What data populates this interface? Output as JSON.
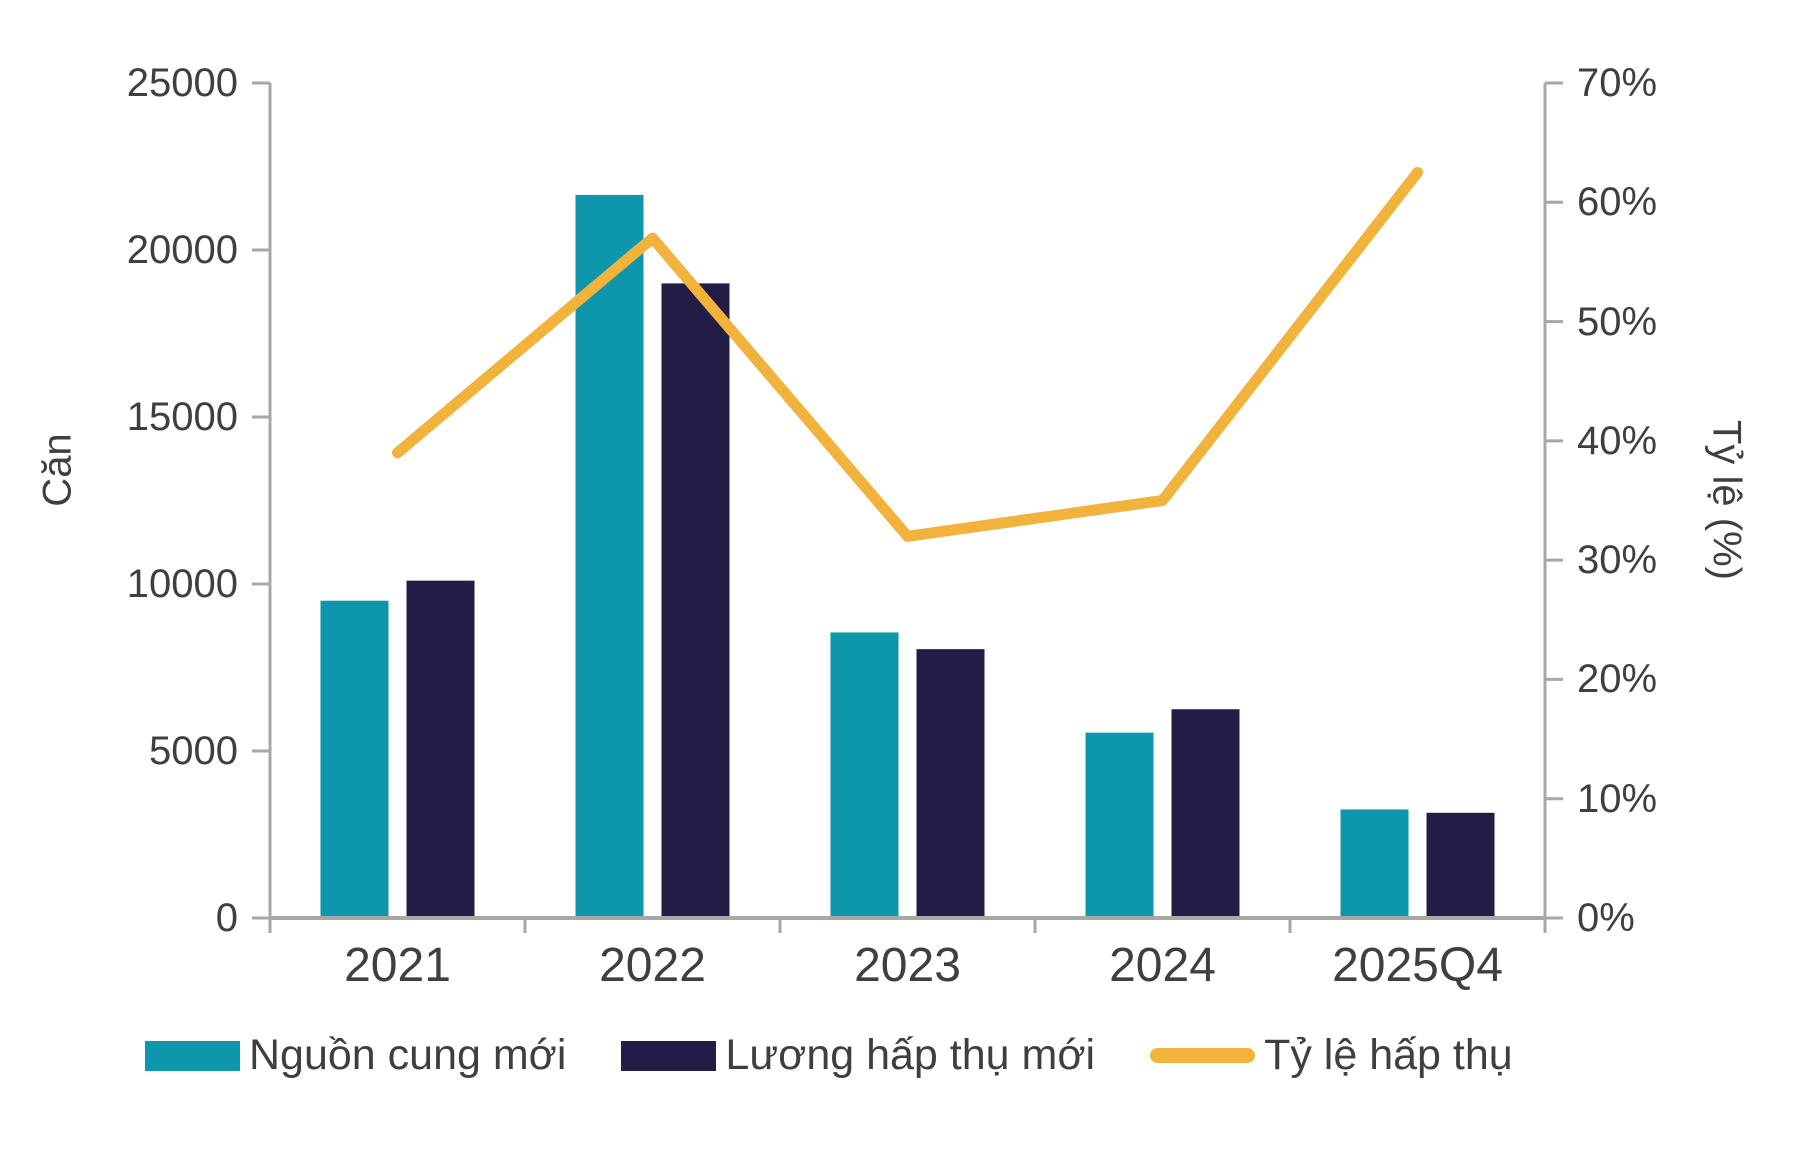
{
  "chart_data": {
    "type": "bar",
    "subtype": "combo-bar-line",
    "categories": [
      "2021",
      "2022",
      "2023",
      "2024",
      "2025Q4"
    ],
    "series": [
      {
        "name": "Nguồn cung mới",
        "type": "bar",
        "axis": "left",
        "color": "#0E96AD",
        "values": [
          9500,
          21650,
          8550,
          5550,
          3250
        ]
      },
      {
        "name": "Lương hấp thụ mới",
        "type": "bar",
        "axis": "left",
        "color": "#221C46",
        "values": [
          10100,
          19000,
          8050,
          6250,
          3150
        ]
      },
      {
        "name": "Tỷ lệ hấp thụ",
        "type": "line",
        "axis": "right",
        "color": "#F2B33D",
        "values": [
          39,
          57,
          32,
          35,
          62.5
        ]
      }
    ],
    "left_axis": {
      "title": "Căn",
      "min": 0,
      "max": 25000,
      "step": 5000,
      "tick_labels": [
        "0",
        "5000",
        "10000",
        "15000",
        "20000",
        "25000"
      ]
    },
    "right_axis": {
      "title": "Tỷ lệ (%)",
      "min": 0,
      "max": 70,
      "step": 10,
      "tick_labels": [
        "0%",
        "10%",
        "20%",
        "30%",
        "40%",
        "50%",
        "60%",
        "70%"
      ]
    },
    "title": "",
    "grid": false,
    "legend_position": "bottom"
  },
  "styles": {
    "axis_color": "#A7A7A7",
    "text_color": "#3F3F3F",
    "background": "#FFFFFF"
  }
}
